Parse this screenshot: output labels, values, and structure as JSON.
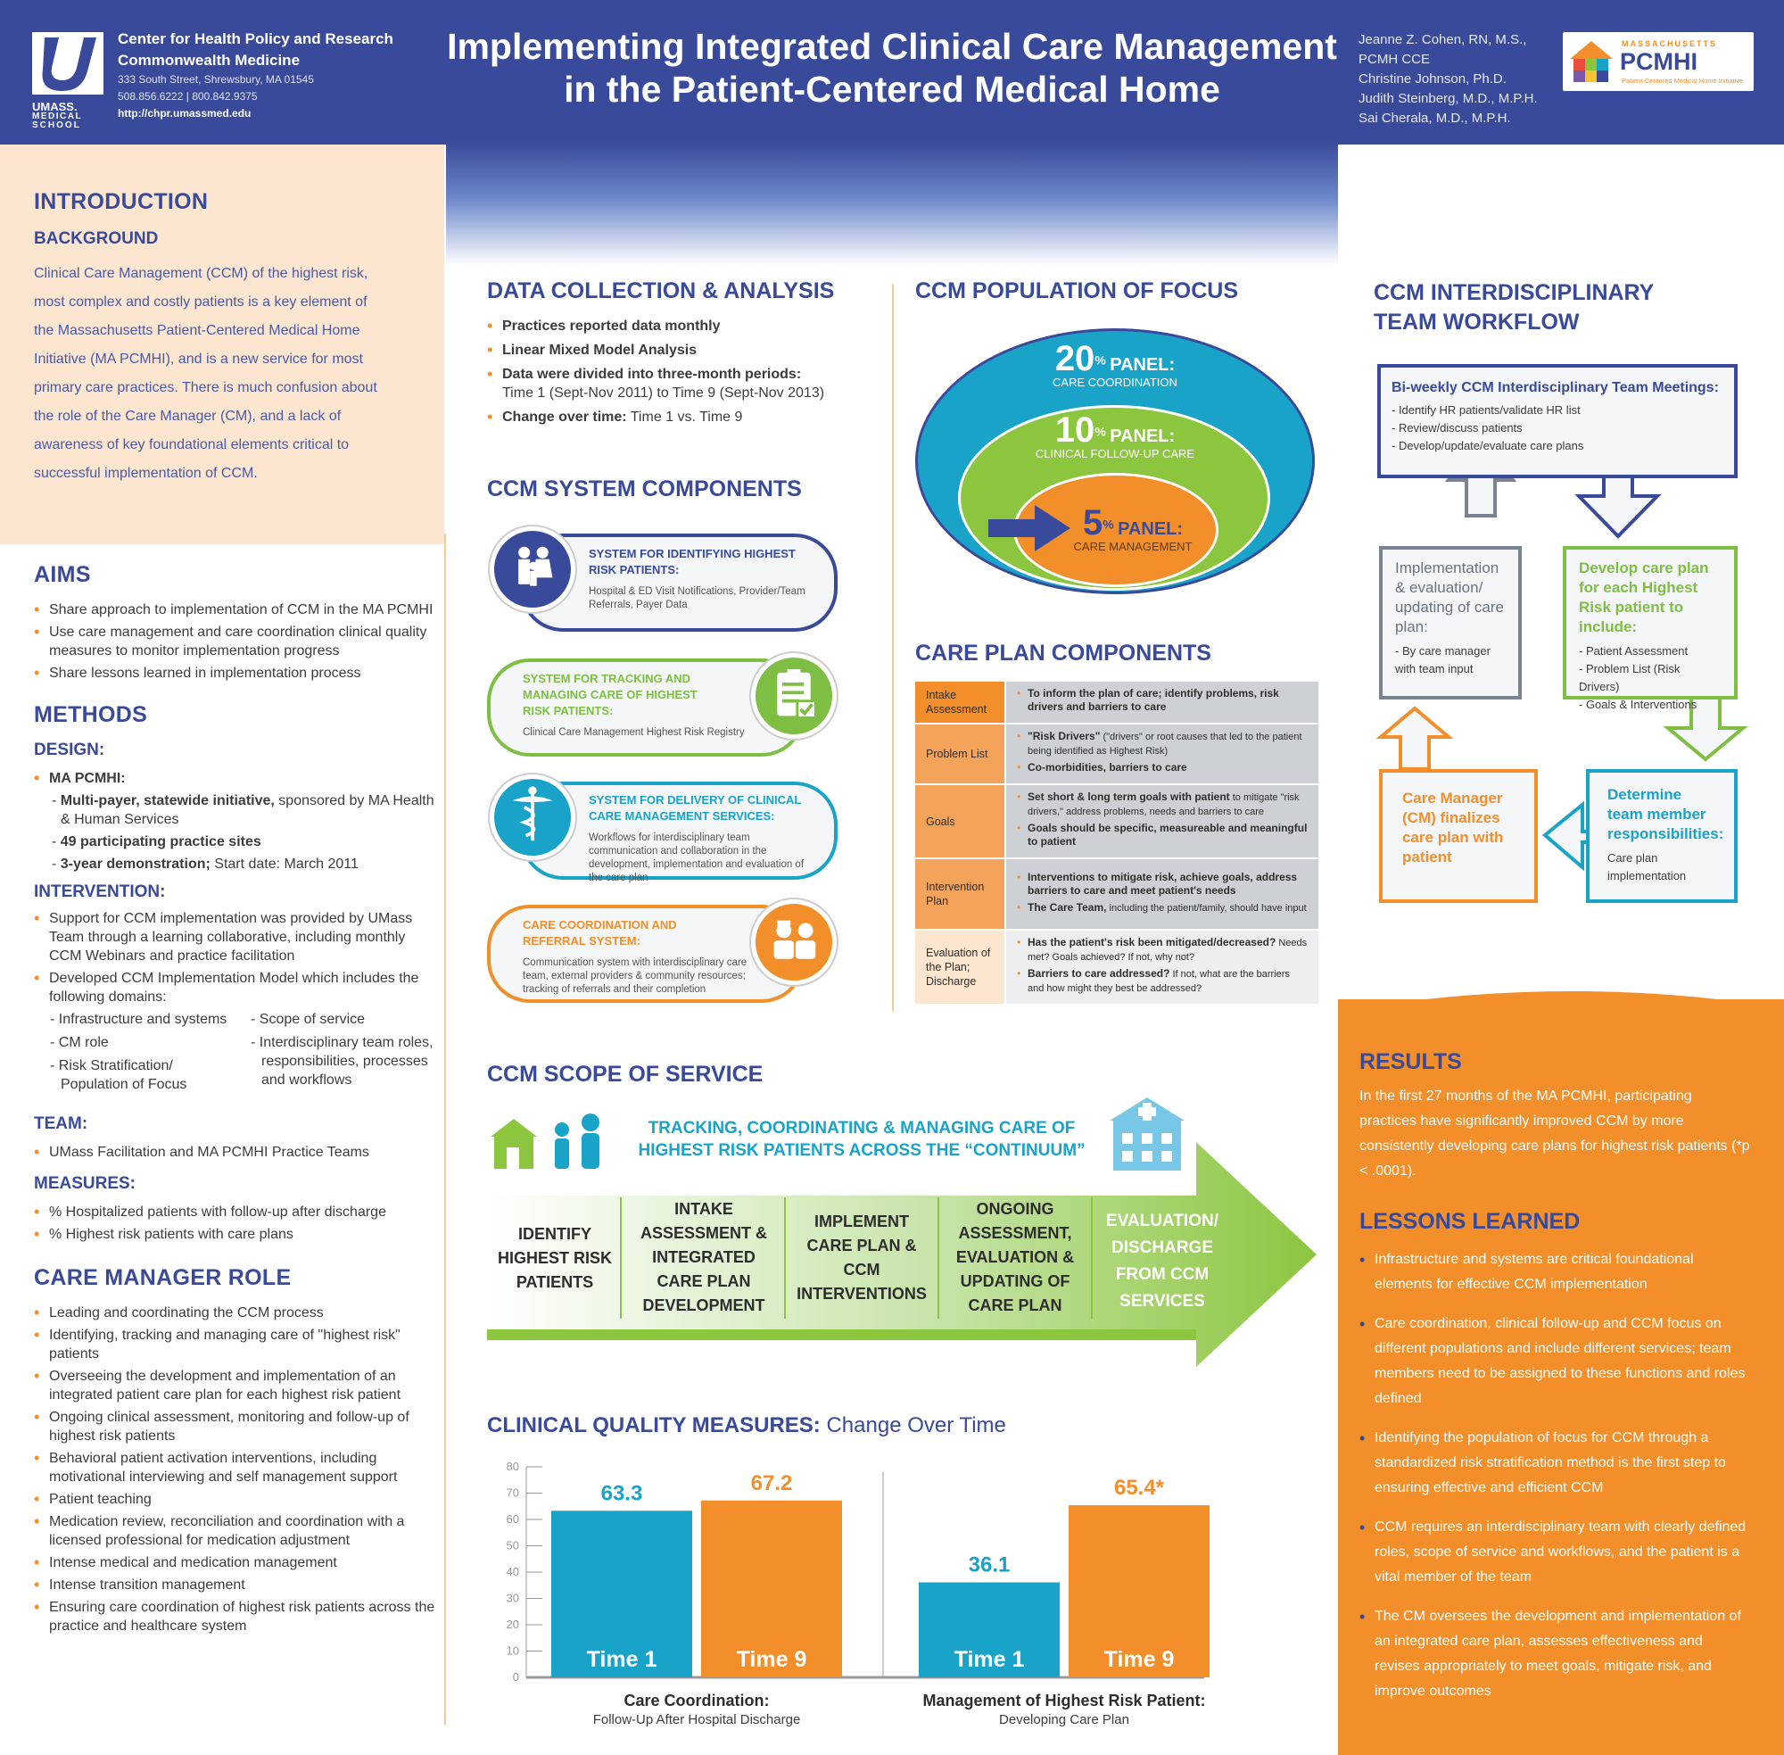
{
  "header": {
    "title_line1": "Implementing Integrated Clinical Care Management",
    "title_line2": "in the Patient-Centered Medical Home",
    "org_line1": "Center for Health Policy and Research",
    "org_line2": "Commonwealth Medicine",
    "address": "333 South Street, Shrewsbury, MA 01545",
    "phone": "508.856.6222 | 800.842.9375",
    "url": "http://chpr.umassmed.edu",
    "logo_umass": "UMASS.",
    "logo_medical": "MEDICAL",
    "logo_school": "SCHOOL",
    "authors": [
      "Jeanne Z. Cohen, RN, M.S.,",
      "PCMH CCE",
      "Christine Johnson, Ph.D.",
      "Judith Steinberg, M.D., M.P.H.",
      "Sai Cherala, M.D., M.P.H."
    ],
    "pcmhi_top": "MASSACHUSETTS",
    "pcmhi_main": "PCMHI",
    "pcmhi_sub": "Patient-Centered Medical Home Initiative"
  },
  "left": {
    "intro_heading": "INTRODUCTION",
    "background_heading": "BACKGROUND",
    "background_text": "Clinical Care Management (CCM) of the highest risk, most complex and costly patients is a key element of the Massachusetts Patient-Centered Medical Home Initiative (MA PCMHI), and is a new service for most primary care practices. There is much confusion about the role of the Care Manager (CM), and a lack of awareness of key foundational elements critical to successful implementation of CCM.",
    "aims_heading": "AIMS",
    "aims": [
      "Share approach to implementation of CCM in the MA PCMHI",
      "Use care management and care coordination clinical quality measures to monitor implementation progress",
      "Share lessons learned in implementation process"
    ],
    "methods_heading": "METHODS",
    "design_heading": "DESIGN:",
    "design_item": "MA PCMHI:",
    "design_sub": [
      {
        "bold": "Multi-payer, statewide initiative,",
        "rest": " sponsored by MA Health & Human Services"
      },
      {
        "bold": "49 participating practice sites",
        "rest": ""
      },
      {
        "bold": "3-year demonstration;",
        "rest": " Start date: March 2011"
      }
    ],
    "intervention_heading": "INTERVENTION:",
    "intervention": [
      "Support for CCM implementation was provided by UMass Team through a learning collaborative, including monthly CCM Webinars and practice facilitation",
      "Developed CCM Implementation Model which includes the following domains:"
    ],
    "domains_col1": [
      "- Infrastructure and systems",
      "- CM role",
      "- Risk Stratification/ Population of Focus"
    ],
    "domains_col2": [
      "- Scope of service",
      "- Interdisciplinary team roles, responsibilities, processes and workflows"
    ],
    "team_heading": "TEAM:",
    "team": [
      "UMass Facilitation and MA PCMHI Practice Teams"
    ],
    "measures_heading": "MEASURES:",
    "measures": [
      "% Hospitalized patients with follow-up after discharge",
      "% Highest risk patients with care plans"
    ],
    "cm_heading": "CARE MANAGER ROLE",
    "cm_role": [
      "Leading and coordinating the CCM process",
      "Identifying, tracking and managing care of \"highest risk\" patients",
      "Overseeing the development and implementation of an integrated patient care plan for each highest risk patient",
      "Ongoing clinical assessment, monitoring and follow-up of highest risk patients",
      "Behavioral patient activation interventions, including motivational interviewing and self management support",
      "Patient teaching",
      "Medication review, reconciliation and coordination with a licensed professional for medication adjustment",
      "Intense medical and medication management",
      "Intense transition management",
      "Ensuring care coordination of highest risk patients across the practice and healthcare system"
    ]
  },
  "data_collection": {
    "heading": "DATA COLLECTION & ANALYSIS",
    "items": [
      {
        "bold": "Practices reported data monthly",
        "rest": ""
      },
      {
        "bold": "Linear Mixed Model Analysis",
        "rest": ""
      },
      {
        "bold": "Data were divided into three-month periods:",
        "rest": "Time 1 (Sept-Nov 2011) to Time 9 (Sept-Nov 2013)"
      },
      {
        "bold": "Change over time:",
        "rest": " Time 1 vs. Time 9"
      }
    ]
  },
  "system_components": {
    "heading": "CCM SYSTEM COMPONENTS",
    "items": [
      {
        "title": "SYSTEM FOR IDENTIFYING HIGHEST RISK PATIENTS:",
        "desc": "Hospital & ED Visit Notifications, Provider/Team Referrals, Payer Data",
        "color": "#3a4a9a",
        "icon": "family-icon"
      },
      {
        "title": "SYSTEM FOR TRACKING AND MANAGING CARE OF HIGHEST RISK PATIENTS:",
        "desc": "Clinical Care Management Highest Risk Registry",
        "color": "#7ebf43",
        "icon": "checklist-icon"
      },
      {
        "title": "SYSTEM FOR DELIVERY OF CLINICAL CARE MANAGEMENT SERVICES:",
        "desc": "Workflows for interdisciplinary team communication and collaboration in the development, implementation and evaluation of the care plan",
        "color": "#1aa3c9",
        "icon": "caduceus-icon"
      },
      {
        "title": "CARE COORDINATION AND REFERRAL SYSTEM:",
        "desc": "Communication system with interdisciplinary care team, external providers & community resources; tracking of referrals and their completion",
        "color": "#f28f2a",
        "icon": "care-team-icon"
      }
    ]
  },
  "population": {
    "heading": "CCM POPULATION OF FOCUS",
    "rings": [
      {
        "pct": "20",
        "label": "PANEL:",
        "sub": "CARE COORDINATION",
        "color": "#1aa3c9"
      },
      {
        "pct": "10",
        "label": "PANEL:",
        "sub": "CLINICAL FOLLOW-UP CARE",
        "color": "#8cc63f"
      },
      {
        "pct": "5",
        "label": "PANEL:",
        "sub": "CARE MANAGEMENT",
        "color": "#f28f2a"
      }
    ],
    "pct_sign": "%"
  },
  "care_plan": {
    "heading": "CARE PLAN COMPONENTS",
    "rows": [
      {
        "label": "Intake Assessment",
        "items": [
          {
            "b": "To inform the plan of care; identify problems, risk drivers and barriers to care",
            "r": ""
          }
        ]
      },
      {
        "label": "Problem List",
        "items": [
          {
            "b": "\"Risk Drivers\"",
            "r": " (\"drivers\" or root causes that led to the patient being identified as Highest Risk)"
          },
          {
            "b": "Co-morbidities, barriers to care",
            "r": ""
          }
        ]
      },
      {
        "label": "Goals",
        "items": [
          {
            "b": "Set short & long term goals with patient",
            "r": " to mitigate \"risk drivers,\" address problems, needs and barriers to care"
          },
          {
            "b": "Goals should be specific, measureable and meaningful to patient",
            "r": ""
          }
        ]
      },
      {
        "label": "Intervention Plan",
        "items": [
          {
            "b": "Interventions to mitigate risk, achieve goals, address barriers to care and meet patient's needs",
            "r": ""
          },
          {
            "b": "The Care Team,",
            "r": " including the patient/family, should have input"
          }
        ]
      },
      {
        "label": "Evaluation of the Plan; Discharge",
        "items": [
          {
            "b": "Has the patient's risk been mitigated/decreased?",
            "r": " Needs met? Goals achieved? If not, why not?"
          },
          {
            "b": "Barriers to care addressed?",
            "r": " If not, what are the barriers and how might they best be addressed?"
          }
        ]
      }
    ]
  },
  "workflow": {
    "heading_line1": "CCM INTERDISCIPLINARY",
    "heading_line2": "TEAM WORKFLOW",
    "meeting_title": "Bi-weekly CCM Interdisciplinary Team Meetings:",
    "meeting_items": [
      "- Identify HR patients/validate HR list",
      "- Review/discuss patients",
      "- Develop/update/evaluate care plans"
    ],
    "impl_title": "Implementation & evaluation/ updating of care plan:",
    "impl_items": [
      "- By care manager with team input"
    ],
    "develop_title": "Develop care plan for each Highest Risk patient to include:",
    "develop_items": [
      "- Patient Assessment",
      "- Problem List (Risk Drivers)",
      "- Goals & Interventions"
    ],
    "cm_title": "Care Manager (CM) finalizes care plan with patient",
    "determine_title": "Determine team member responsibilities:",
    "determine_items": [
      "Care plan implementation"
    ]
  },
  "scope": {
    "heading": "CCM SCOPE OF SERVICE",
    "banner_line1": "TRACKING, COORDINATING & MANAGING CARE OF",
    "banner_line2": "HIGHEST RISK PATIENTS ACROSS THE “CONTINUUM”",
    "stages": [
      "IDENTIFY HIGHEST RISK PATIENTS",
      "INTAKE ASSESSMENT & INTEGRATED CARE PLAN DEVELOPMENT",
      "IMPLEMENT CARE PLAN & CCM INTERVENTIONS",
      "ONGOING ASSESSMENT, EVALUATION & UPDATING OF CARE PLAN",
      "EVALUATION/ DISCHARGE FROM CCM SERVICES"
    ]
  },
  "quality": {
    "heading_bold": "CLINICAL QUALITY MEASURES:",
    "heading_rest": " Change Over Time"
  },
  "chart_data": {
    "type": "bar",
    "title": "CLINICAL QUALITY MEASURES: Change Over Time",
    "ylim": [
      0,
      80
    ],
    "yticks": [
      0,
      10,
      20,
      30,
      40,
      50,
      60,
      70,
      80
    ],
    "grid": false,
    "groups": [
      {
        "name": "Care Coordination:",
        "subtitle": "Follow-Up After Hospital Discharge",
        "bars": [
          {
            "label": "Time 1",
            "value": 63.3,
            "display": "63.3",
            "color": "#1aa3c9"
          },
          {
            "label": "Time 9",
            "value": 67.2,
            "display": "67.2",
            "color": "#f28f2a"
          }
        ]
      },
      {
        "name": "Management of Highest Risk Patient:",
        "subtitle": "Developing Care Plan",
        "bars": [
          {
            "label": "Time 1",
            "value": 36.1,
            "display": "36.1",
            "color": "#1aa3c9"
          },
          {
            "label": "Time 9",
            "value": 65.4,
            "display": "65.4*",
            "color": "#f28f2a"
          }
        ]
      }
    ]
  },
  "results": {
    "heading": "RESULTS",
    "text": "In the first 27 months of the MA PCMHI, participating practices have significantly improved CCM by more consistently developing care plans for highest risk patients (*p < .0001).",
    "lessons_heading": "LESSONS LEARNED",
    "lessons": [
      "Infrastructure and systems are critical foundational elements for effective CCM implementation",
      "Care coordination, clinical follow-up and CCM focus on different populations and include different services; team members need to be assigned to these functions and roles defined",
      "Identifying the population of focus for CCM through a standardized risk stratification method is the first step to ensuring effective and efficient CCM",
      "CCM requires an interdisciplinary team with clearly defined roles, scope of service and workflows, and the patient is a vital member of the team",
      "The CM oversees the development and implementation of an integrated care plan, assesses effectiveness and revises appropriately to meet goals, mitigate risk, and improve outcomes"
    ]
  },
  "colors": {
    "navy": "#3a4a9a",
    "orange": "#f28f2a",
    "teal": "#1aa3c9",
    "green": "#8cc63f",
    "peach": "#fde6cf"
  }
}
